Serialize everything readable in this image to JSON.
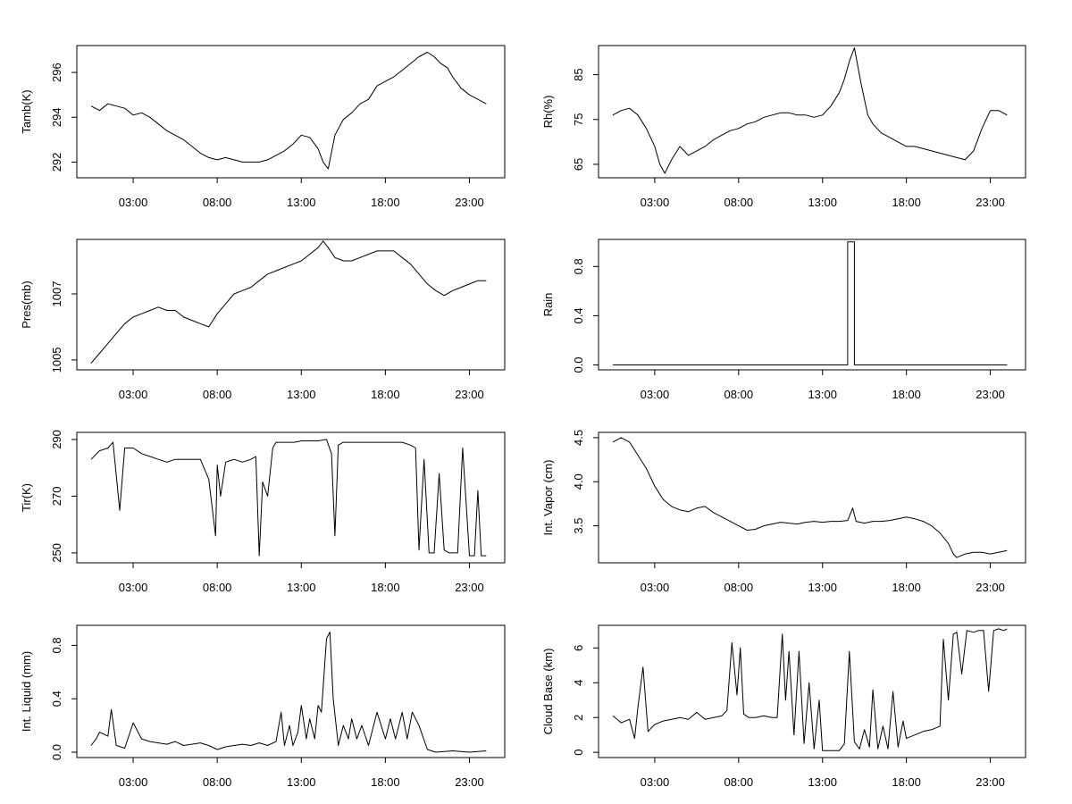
{
  "figure": {
    "background": "#ffffff",
    "line_color": "#000000"
  },
  "chart_data": [
    {
      "type": "line",
      "ylabel": "Tamb(K)",
      "xlabel": "",
      "x_ticks": [
        "03:00",
        "08:00",
        "13:00",
        "18:00",
        "23:00"
      ],
      "x_tick_hours": [
        3,
        8,
        13,
        18,
        23
      ],
      "y_ticks": [
        292,
        294,
        296
      ],
      "ylim": [
        291.3,
        297.2
      ],
      "x_hours": [
        0.5,
        1,
        1.5,
        2,
        2.5,
        3,
        3.5,
        4,
        4.5,
        5,
        5.5,
        6,
        6.5,
        7,
        7.5,
        8,
        8.5,
        9,
        9.5,
        10,
        10.5,
        11,
        11.5,
        12,
        12.5,
        13,
        13.5,
        14,
        14.3,
        14.6,
        15,
        15.5,
        16,
        16.5,
        17,
        17.5,
        18,
        18.5,
        19,
        19.5,
        20,
        20.5,
        20.9,
        21.3,
        21.7,
        22,
        22.5,
        23,
        23.5,
        24
      ],
      "y": [
        294.5,
        294.3,
        294.6,
        294.5,
        294.4,
        294.1,
        294.2,
        294.0,
        293.7,
        293.4,
        293.2,
        293.0,
        292.7,
        292.4,
        292.2,
        292.1,
        292.2,
        292.1,
        292.0,
        292.0,
        292.0,
        292.1,
        292.3,
        292.5,
        292.8,
        293.2,
        293.1,
        292.6,
        292.0,
        291.7,
        293.2,
        293.9,
        294.2,
        294.6,
        294.8,
        295.4,
        295.6,
        295.8,
        296.1,
        296.4,
        296.7,
        296.9,
        296.7,
        296.4,
        296.2,
        295.8,
        295.3,
        295.0,
        294.8,
        294.6
      ]
    },
    {
      "type": "line",
      "ylabel": "Rh(%)",
      "xlabel": "",
      "x_ticks": [
        "03:00",
        "08:00",
        "13:00",
        "18:00",
        "23:00"
      ],
      "x_tick_hours": [
        3,
        8,
        13,
        18,
        23
      ],
      "y_ticks": [
        65,
        75,
        85
      ],
      "ylim": [
        62,
        91.5
      ],
      "x_hours": [
        0.5,
        1,
        1.5,
        2,
        2.5,
        3,
        3.3,
        3.6,
        4,
        4.5,
        5,
        5.5,
        6,
        6.5,
        7,
        7.5,
        8,
        8.5,
        9,
        9.5,
        10,
        10.5,
        11,
        11.5,
        12,
        12.5,
        13,
        13.5,
        14,
        14.3,
        14.6,
        14.9,
        15.3,
        15.7,
        16,
        16.5,
        17,
        17.5,
        18,
        18.5,
        19,
        19.5,
        20,
        20.5,
        21,
        21.5,
        22,
        22.5,
        23,
        23.5,
        24
      ],
      "y": [
        76,
        77,
        77.5,
        76,
        73,
        69,
        65,
        63,
        66,
        69,
        67,
        68,
        69,
        70.5,
        71.5,
        72.5,
        73,
        74,
        74.5,
        75.5,
        76,
        76.5,
        76.5,
        76,
        76,
        75.5,
        76,
        78,
        81,
        84,
        88,
        91,
        83,
        76,
        74,
        72,
        71,
        70,
        69,
        69,
        68.5,
        68,
        67.5,
        67,
        66.5,
        66,
        68,
        73,
        77,
        77,
        76
      ]
    },
    {
      "type": "line",
      "ylabel": "Pres(mb)",
      "xlabel": "",
      "x_ticks": [
        "03:00",
        "08:00",
        "13:00",
        "18:00",
        "23:00"
      ],
      "x_tick_hours": [
        3,
        8,
        13,
        18,
        23
      ],
      "y_ticks": [
        1005,
        1007
      ],
      "ylim": [
        1004.7,
        1008.65
      ],
      "x_hours": [
        0.5,
        1,
        1.5,
        2,
        2.5,
        3,
        3.5,
        4,
        4.5,
        5,
        5.5,
        6,
        6.5,
        7,
        7.5,
        8,
        8.5,
        9,
        9.5,
        10,
        10.5,
        11,
        11.5,
        12,
        12.5,
        13,
        13.5,
        14,
        14.3,
        14.6,
        15,
        15.5,
        16,
        16.5,
        17,
        17.5,
        18,
        18.5,
        19,
        19.5,
        20,
        20.5,
        21,
        21.5,
        22,
        22.5,
        23,
        23.5,
        24
      ],
      "y": [
        1004.9,
        1005.2,
        1005.5,
        1005.8,
        1006.1,
        1006.3,
        1006.4,
        1006.5,
        1006.6,
        1006.5,
        1006.5,
        1006.3,
        1006.2,
        1006.1,
        1006.0,
        1006.4,
        1006.7,
        1007.0,
        1007.1,
        1007.2,
        1007.4,
        1007.6,
        1007.7,
        1007.8,
        1007.9,
        1008.0,
        1008.2,
        1008.4,
        1008.6,
        1008.4,
        1008.1,
        1008.0,
        1008.0,
        1008.1,
        1008.2,
        1008.3,
        1008.3,
        1008.3,
        1008.1,
        1007.9,
        1007.6,
        1007.3,
        1007.1,
        1006.95,
        1007.1,
        1007.2,
        1007.3,
        1007.4,
        1007.4
      ]
    },
    {
      "type": "line",
      "ylabel": "Rain",
      "xlabel": "",
      "x_ticks": [
        "03:00",
        "08:00",
        "13:00",
        "18:00",
        "23:00"
      ],
      "x_tick_hours": [
        3,
        8,
        13,
        18,
        23
      ],
      "y_ticks": [
        "0.0",
        "0.4",
        "0.8"
      ],
      "y_tick_values": [
        0,
        0.4,
        0.8
      ],
      "ylim": [
        -0.04,
        1.02
      ],
      "x_hours": [
        0.5,
        14.5,
        14.5,
        14.9,
        14.9,
        24
      ],
      "y": [
        0,
        0,
        1,
        1,
        0,
        0
      ]
    },
    {
      "type": "line",
      "ylabel": "Tir(K)",
      "xlabel": "",
      "x_ticks": [
        "03:00",
        "08:00",
        "13:00",
        "18:00",
        "23:00"
      ],
      "x_tick_hours": [
        3,
        8,
        13,
        18,
        23
      ],
      "y_ticks": [
        250,
        270,
        290
      ],
      "ylim": [
        246.5,
        292.5
      ],
      "x_hours": [
        0.5,
        1,
        1.5,
        1.8,
        2.2,
        2.5,
        3,
        3.5,
        4,
        4.5,
        5,
        5.5,
        6,
        6.5,
        7,
        7.5,
        7.9,
        8,
        8.2,
        8.5,
        9,
        9.5,
        10,
        10.3,
        10.5,
        10.7,
        11,
        11.3,
        11.5,
        11.8,
        12,
        12.3,
        12.6,
        13,
        13.5,
        14,
        14.5,
        14.8,
        15,
        15.2,
        15.5,
        16,
        16.5,
        17,
        17.5,
        18,
        18.5,
        19,
        19.5,
        19.8,
        20,
        20.3,
        20.6,
        20.9,
        21.2,
        21.5,
        21.8,
        22,
        22.3,
        22.6,
        23,
        23.3,
        23.5,
        23.7,
        24
      ],
      "y": [
        283,
        286,
        287,
        289,
        265,
        287,
        287,
        285,
        284,
        283,
        282,
        283,
        283,
        283,
        283,
        276,
        256,
        281,
        270,
        282,
        283,
        282,
        283,
        284,
        249,
        275,
        270,
        287,
        289,
        289,
        289,
        289,
        289,
        289.5,
        289.5,
        289.5,
        290,
        285,
        256,
        288,
        289,
        289,
        289,
        289,
        289,
        289,
        289,
        289,
        288,
        287,
        251,
        283,
        250,
        250,
        278,
        251,
        250,
        250,
        250,
        287,
        249,
        249,
        272,
        249,
        249
      ]
    },
    {
      "type": "line",
      "ylabel": "Int. Vapor (cm)",
      "xlabel": "",
      "x_ticks": [
        "03:00",
        "08:00",
        "13:00",
        "18:00",
        "23:00"
      ],
      "x_tick_hours": [
        3,
        8,
        13,
        18,
        23
      ],
      "y_ticks": [
        "3.5",
        "4.0",
        "4.5"
      ],
      "y_tick_values": [
        3.5,
        4.0,
        4.5
      ],
      "ylim": [
        3.08,
        4.56
      ],
      "x_hours": [
        0.5,
        1,
        1.5,
        2,
        2.5,
        3,
        3.5,
        4,
        4.5,
        5,
        5.5,
        6,
        6.5,
        7,
        7.5,
        8,
        8.5,
        9,
        9.5,
        10,
        10.5,
        11,
        11.5,
        12,
        12.5,
        13,
        13.5,
        14,
        14.5,
        14.8,
        15,
        15.5,
        16,
        16.5,
        17,
        17.5,
        18,
        18.5,
        19,
        19.5,
        20,
        20.5,
        20.8,
        21,
        21.5,
        22,
        22.5,
        23,
        23.5,
        24
      ],
      "y": [
        4.45,
        4.5,
        4.45,
        4.3,
        4.15,
        3.95,
        3.8,
        3.72,
        3.68,
        3.66,
        3.7,
        3.72,
        3.65,
        3.6,
        3.55,
        3.5,
        3.45,
        3.46,
        3.5,
        3.52,
        3.54,
        3.53,
        3.52,
        3.54,
        3.55,
        3.54,
        3.55,
        3.55,
        3.56,
        3.7,
        3.55,
        3.53,
        3.55,
        3.55,
        3.56,
        3.58,
        3.6,
        3.58,
        3.55,
        3.5,
        3.42,
        3.3,
        3.18,
        3.14,
        3.18,
        3.2,
        3.2,
        3.18,
        3.2,
        3.22
      ]
    },
    {
      "type": "line",
      "ylabel": "Int. Liquid (mm)",
      "xlabel": "",
      "x_ticks": [
        "03:00",
        "08:00",
        "13:00",
        "18:00",
        "23:00"
      ],
      "x_tick_hours": [
        3,
        8,
        13,
        18,
        23
      ],
      "y_ticks": [
        "0.0",
        "0.4",
        "0.8"
      ],
      "y_tick_values": [
        0,
        0.4,
        0.8
      ],
      "ylim": [
        -0.04,
        0.95
      ],
      "x_hours": [
        0.5,
        0.8,
        1,
        1.5,
        1.7,
        2,
        2.5,
        3,
        3.5,
        4,
        4.5,
        5,
        5.5,
        6,
        6.5,
        7,
        7.5,
        8,
        8.5,
        9,
        9.5,
        10,
        10.5,
        11,
        11.5,
        11.8,
        12,
        12.3,
        12.5,
        12.8,
        13,
        13.3,
        13.5,
        13.8,
        14,
        14.2,
        14.5,
        14.7,
        14.9,
        15.2,
        15.5,
        15.8,
        16,
        16.3,
        16.6,
        17,
        17.5,
        18,
        18.3,
        18.6,
        19,
        19.3,
        19.6,
        20,
        20.5,
        21,
        22,
        23,
        24
      ],
      "y": [
        0.05,
        0.1,
        0.15,
        0.12,
        0.32,
        0.05,
        0.03,
        0.22,
        0.1,
        0.08,
        0.07,
        0.06,
        0.08,
        0.05,
        0.06,
        0.07,
        0.05,
        0.02,
        0.04,
        0.05,
        0.06,
        0.05,
        0.07,
        0.05,
        0.08,
        0.3,
        0.05,
        0.2,
        0.05,
        0.15,
        0.35,
        0.1,
        0.25,
        0.1,
        0.35,
        0.3,
        0.85,
        0.9,
        0.4,
        0.05,
        0.2,
        0.1,
        0.25,
        0.1,
        0.2,
        0.05,
        0.3,
        0.1,
        0.25,
        0.1,
        0.3,
        0.1,
        0.3,
        0.2,
        0.02,
        0.0,
        0.01,
        0.0,
        0.01
      ]
    },
    {
      "type": "line",
      "ylabel": "Cloud Base (km)",
      "xlabel": "",
      "x_ticks": [
        "03:00",
        "08:00",
        "13:00",
        "18:00",
        "23:00"
      ],
      "x_tick_hours": [
        3,
        8,
        13,
        18,
        23
      ],
      "y_ticks": [
        0,
        2,
        4,
        6
      ],
      "ylim": [
        -0.3,
        7.3
      ],
      "x_hours": [
        0.5,
        1,
        1.5,
        1.8,
        2,
        2.3,
        2.6,
        3,
        3.5,
        4,
        4.5,
        5,
        5.5,
        6,
        6.5,
        7,
        7.3,
        7.6,
        7.9,
        8.1,
        8.3,
        8.6,
        9,
        9.5,
        10,
        10.3,
        10.6,
        10.8,
        11,
        11.3,
        11.6,
        11.9,
        12.2,
        12.5,
        12.8,
        13,
        13.5,
        14,
        14.3,
        14.6,
        14.9,
        15.2,
        15.5,
        15.8,
        16,
        16.3,
        16.6,
        16.9,
        17.2,
        17.5,
        17.8,
        18,
        18.5,
        19,
        19.5,
        20,
        20.2,
        20.5,
        20.8,
        21,
        21.3,
        21.6,
        22,
        22.3,
        22.6,
        22.9,
        23.2,
        23.5,
        23.8,
        24
      ],
      "y": [
        2.1,
        1.7,
        1.9,
        0.8,
        2.6,
        4.9,
        1.2,
        1.6,
        1.8,
        1.9,
        2.0,
        1.9,
        2.3,
        1.9,
        2.0,
        2.1,
        2.4,
        6.3,
        3.3,
        6.0,
        2.2,
        2.0,
        2.0,
        2.1,
        2.0,
        2.0,
        6.8,
        3.0,
        5.8,
        1.0,
        5.8,
        0.5,
        4.0,
        0.2,
        3.0,
        0.1,
        0.1,
        0.1,
        0.5,
        5.8,
        0.6,
        0.2,
        1.3,
        0.3,
        3.6,
        0.2,
        1.5,
        0.2,
        3.5,
        0.3,
        1.8,
        0.8,
        1.0,
        1.2,
        1.3,
        1.5,
        6.5,
        3.0,
        6.8,
        6.9,
        4.5,
        7.0,
        6.9,
        7.0,
        7.0,
        3.5,
        7.0,
        7.1,
        7.0,
        7.1
      ]
    }
  ]
}
